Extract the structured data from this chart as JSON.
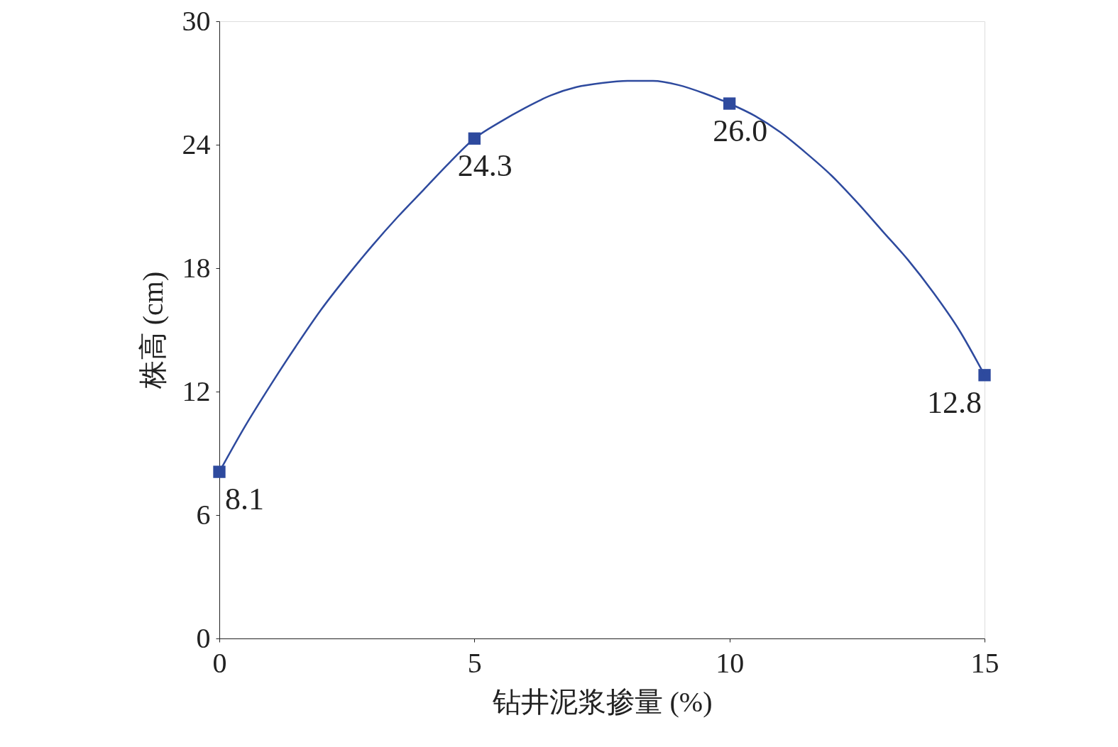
{
  "chart_data": {
    "type": "scatter",
    "xlabel": "钻井泥浆掺量 (%)",
    "ylabel": "株高 (cm)",
    "xlim": [
      0,
      15
    ],
    "xticks": [
      0,
      5,
      10,
      15
    ],
    "ylim": [
      0,
      30
    ],
    "yticks": [
      0,
      6,
      12,
      18,
      24,
      30
    ],
    "grid": false,
    "series": [
      {
        "marker": "square",
        "color": "#2e4a9e",
        "x": [
          0,
          5,
          10,
          15
        ],
        "values": [
          8.1,
          24.3,
          26.0,
          12.8
        ],
        "value_labels": [
          "8.1",
          "24.3",
          "26.0",
          "12.8"
        ]
      },
      {
        "type": "line",
        "marker": "none",
        "line_style": "solid",
        "color": "#2e4a9e",
        "x": [
          0,
          0.5,
          1,
          1.5,
          2,
          2.5,
          3,
          3.5,
          4,
          4.5,
          5,
          5.5,
          6,
          6.5,
          7,
          7.5,
          8,
          8.5,
          9,
          9.5,
          10,
          10.5,
          11,
          11.5,
          12,
          12.5,
          13,
          13.5,
          14,
          14.5,
          15
        ],
        "values": [
          8.1,
          10.3,
          12.3,
          14.2,
          16.0,
          17.6,
          19.1,
          20.5,
          21.8,
          23.1,
          24.3,
          25.1,
          25.8,
          26.4,
          26.8,
          27.0,
          27.1,
          27.1,
          26.9,
          26.5,
          26.0,
          25.4,
          24.6,
          23.6,
          22.5,
          21.2,
          19.8,
          18.4,
          16.8,
          15.0,
          12.8
        ]
      }
    ]
  }
}
